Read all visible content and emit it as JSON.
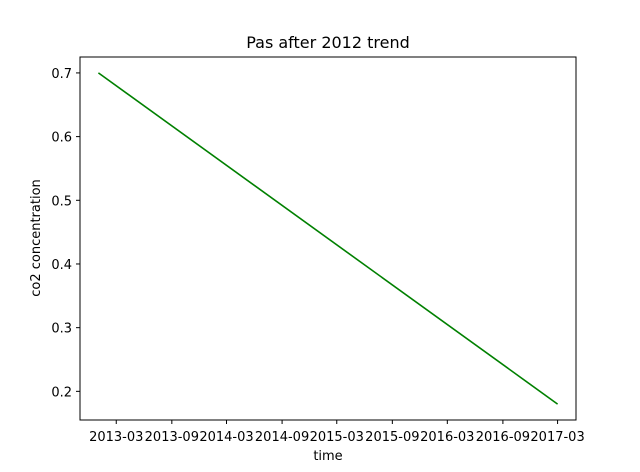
{
  "chart_data": {
    "type": "line",
    "title": "Pas after 2012 trend",
    "xlabel": "time",
    "ylabel": "co2 concentration",
    "x_ticks": [
      "2013-03",
      "2013-09",
      "2014-03",
      "2014-09",
      "2015-03",
      "2015-09",
      "2016-03",
      "2016-09",
      "2017-03"
    ],
    "y_ticks": [
      "0.2",
      "0.3",
      "0.4",
      "0.5",
      "0.6",
      "0.7"
    ],
    "x": [
      "2013-01-01",
      "2017-03-01"
    ],
    "y": [
      0.7,
      0.18
    ],
    "ylim": [
      0.155,
      0.725
    ],
    "xlim": [
      "2012-11-01",
      "2017-05-01"
    ],
    "line_color": "#008000",
    "grid": false,
    "legend": "none"
  }
}
